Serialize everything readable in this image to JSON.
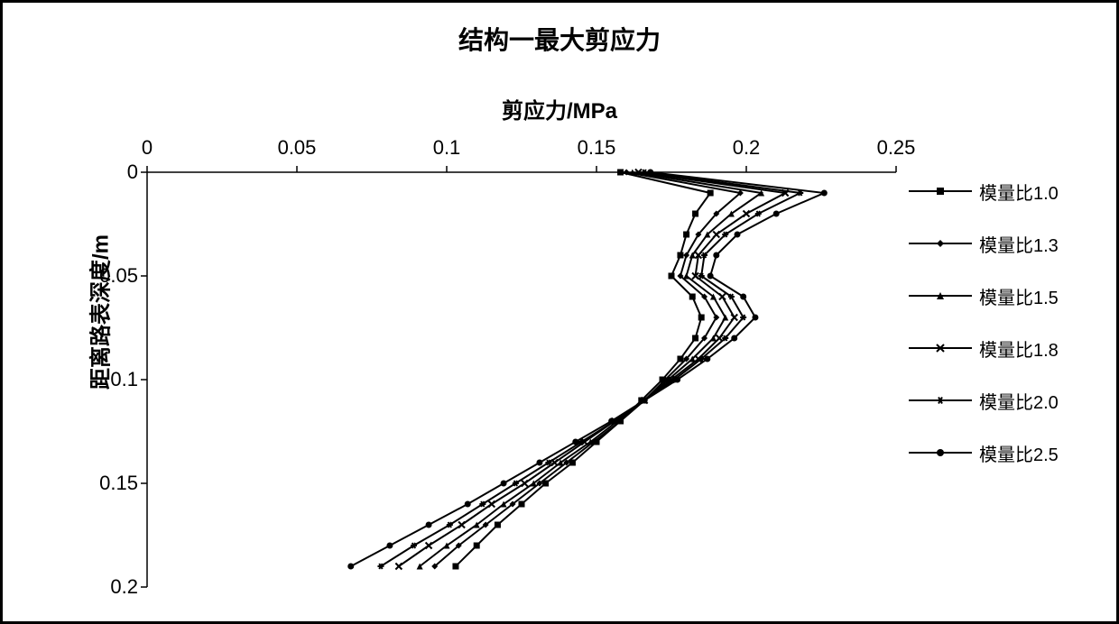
{
  "chart": {
    "type": "line",
    "title": "结构一最大剪应力",
    "title_fontsize": 28,
    "xlabel": "剪应力/MPa",
    "ylabel": "距离路表深度/m",
    "label_fontsize": 24,
    "xlim": [
      0,
      0.25
    ],
    "ylim": [
      0,
      0.2
    ],
    "x_axis_position": "top",
    "y_reversed": true,
    "xticks": [
      0,
      0.05,
      0.1,
      0.15,
      0.2,
      0.25
    ],
    "xtick_labels": [
      "0",
      "0.05",
      "0.1",
      "0.15",
      "0.2",
      "0.25"
    ],
    "yticks": [
      0,
      0.05,
      0.1,
      0.15,
      0.2
    ],
    "ytick_labels": [
      "0",
      "0.05",
      "0.1",
      "0.15",
      "0.2"
    ],
    "background_color": "#ffffff",
    "axis_color": "#000000",
    "tick_fontsize": 22,
    "line_width": 2,
    "marker_size": 7,
    "series": [
      {
        "name": "模量比1.0",
        "marker": "square",
        "color": "#000000",
        "data": [
          {
            "y": 0.0,
            "x": 0.158
          },
          {
            "y": 0.01,
            "x": 0.188
          },
          {
            "y": 0.02,
            "x": 0.183
          },
          {
            "y": 0.03,
            "x": 0.18
          },
          {
            "y": 0.04,
            "x": 0.178
          },
          {
            "y": 0.05,
            "x": 0.175
          },
          {
            "y": 0.06,
            "x": 0.182
          },
          {
            "y": 0.07,
            "x": 0.185
          },
          {
            "y": 0.08,
            "x": 0.183
          },
          {
            "y": 0.09,
            "x": 0.178
          },
          {
            "y": 0.1,
            "x": 0.172
          },
          {
            "y": 0.11,
            "x": 0.165
          },
          {
            "y": 0.12,
            "x": 0.158
          },
          {
            "y": 0.13,
            "x": 0.15
          },
          {
            "y": 0.14,
            "x": 0.142
          },
          {
            "y": 0.15,
            "x": 0.133
          },
          {
            "y": 0.16,
            "x": 0.125
          },
          {
            "y": 0.17,
            "x": 0.117
          },
          {
            "y": 0.18,
            "x": 0.11
          },
          {
            "y": 0.19,
            "x": 0.103
          }
        ]
      },
      {
        "name": "模量比1.3",
        "marker": "diamond",
        "color": "#000000",
        "data": [
          {
            "y": 0.0,
            "x": 0.16
          },
          {
            "y": 0.01,
            "x": 0.198
          },
          {
            "y": 0.02,
            "x": 0.19
          },
          {
            "y": 0.03,
            "x": 0.184
          },
          {
            "y": 0.04,
            "x": 0.18
          },
          {
            "y": 0.05,
            "x": 0.178
          },
          {
            "y": 0.06,
            "x": 0.186
          },
          {
            "y": 0.07,
            "x": 0.19
          },
          {
            "y": 0.08,
            "x": 0.186
          },
          {
            "y": 0.09,
            "x": 0.18
          },
          {
            "y": 0.1,
            "x": 0.173
          },
          {
            "y": 0.11,
            "x": 0.166
          },
          {
            "y": 0.12,
            "x": 0.158
          },
          {
            "y": 0.13,
            "x": 0.149
          },
          {
            "y": 0.14,
            "x": 0.14
          },
          {
            "y": 0.15,
            "x": 0.131
          },
          {
            "y": 0.16,
            "x": 0.122
          },
          {
            "y": 0.17,
            "x": 0.113
          },
          {
            "y": 0.18,
            "x": 0.104
          },
          {
            "y": 0.19,
            "x": 0.096
          }
        ]
      },
      {
        "name": "模量比1.5",
        "marker": "triangle",
        "color": "#000000",
        "data": [
          {
            "y": 0.0,
            "x": 0.162
          },
          {
            "y": 0.01,
            "x": 0.205
          },
          {
            "y": 0.02,
            "x": 0.195
          },
          {
            "y": 0.03,
            "x": 0.187
          },
          {
            "y": 0.04,
            "x": 0.182
          },
          {
            "y": 0.05,
            "x": 0.18
          },
          {
            "y": 0.06,
            "x": 0.189
          },
          {
            "y": 0.07,
            "x": 0.193
          },
          {
            "y": 0.08,
            "x": 0.189
          },
          {
            "y": 0.09,
            "x": 0.182
          },
          {
            "y": 0.1,
            "x": 0.174
          },
          {
            "y": 0.11,
            "x": 0.166
          },
          {
            "y": 0.12,
            "x": 0.157
          },
          {
            "y": 0.13,
            "x": 0.148
          },
          {
            "y": 0.14,
            "x": 0.138
          },
          {
            "y": 0.15,
            "x": 0.129
          },
          {
            "y": 0.16,
            "x": 0.119
          },
          {
            "y": 0.17,
            "x": 0.11
          },
          {
            "y": 0.18,
            "x": 0.1
          },
          {
            "y": 0.19,
            "x": 0.091
          }
        ]
      },
      {
        "name": "模量比1.8",
        "marker": "x",
        "color": "#000000",
        "data": [
          {
            "y": 0.0,
            "x": 0.164
          },
          {
            "y": 0.01,
            "x": 0.213
          },
          {
            "y": 0.02,
            "x": 0.2
          },
          {
            "y": 0.03,
            "x": 0.19
          },
          {
            "y": 0.04,
            "x": 0.184
          },
          {
            "y": 0.05,
            "x": 0.183
          },
          {
            "y": 0.06,
            "x": 0.192
          },
          {
            "y": 0.07,
            "x": 0.196
          },
          {
            "y": 0.08,
            "x": 0.191
          },
          {
            "y": 0.09,
            "x": 0.184
          },
          {
            "y": 0.1,
            "x": 0.175
          },
          {
            "y": 0.11,
            "x": 0.166
          },
          {
            "y": 0.12,
            "x": 0.156
          },
          {
            "y": 0.13,
            "x": 0.146
          },
          {
            "y": 0.14,
            "x": 0.136
          },
          {
            "y": 0.15,
            "x": 0.126
          },
          {
            "y": 0.16,
            "x": 0.115
          },
          {
            "y": 0.17,
            "x": 0.105
          },
          {
            "y": 0.18,
            "x": 0.094
          },
          {
            "y": 0.19,
            "x": 0.084
          }
        ]
      },
      {
        "name": "模量比2.0",
        "marker": "asterisk",
        "color": "#000000",
        "data": [
          {
            "y": 0.0,
            "x": 0.166
          },
          {
            "y": 0.01,
            "x": 0.218
          },
          {
            "y": 0.02,
            "x": 0.204
          },
          {
            "y": 0.03,
            "x": 0.193
          },
          {
            "y": 0.04,
            "x": 0.186
          },
          {
            "y": 0.05,
            "x": 0.185
          },
          {
            "y": 0.06,
            "x": 0.195
          },
          {
            "y": 0.07,
            "x": 0.199
          },
          {
            "y": 0.08,
            "x": 0.193
          },
          {
            "y": 0.09,
            "x": 0.185
          },
          {
            "y": 0.1,
            "x": 0.176
          },
          {
            "y": 0.11,
            "x": 0.166
          },
          {
            "y": 0.12,
            "x": 0.156
          },
          {
            "y": 0.13,
            "x": 0.145
          },
          {
            "y": 0.14,
            "x": 0.134
          },
          {
            "y": 0.15,
            "x": 0.123
          },
          {
            "y": 0.16,
            "x": 0.112
          },
          {
            "y": 0.17,
            "x": 0.101
          },
          {
            "y": 0.18,
            "x": 0.089
          },
          {
            "y": 0.19,
            "x": 0.078
          }
        ]
      },
      {
        "name": "模量比2.5",
        "marker": "circle",
        "color": "#000000",
        "data": [
          {
            "y": 0.0,
            "x": 0.168
          },
          {
            "y": 0.01,
            "x": 0.226
          },
          {
            "y": 0.02,
            "x": 0.21
          },
          {
            "y": 0.03,
            "x": 0.197
          },
          {
            "y": 0.04,
            "x": 0.19
          },
          {
            "y": 0.05,
            "x": 0.188
          },
          {
            "y": 0.06,
            "x": 0.199
          },
          {
            "y": 0.07,
            "x": 0.203
          },
          {
            "y": 0.08,
            "x": 0.196
          },
          {
            "y": 0.09,
            "x": 0.187
          },
          {
            "y": 0.1,
            "x": 0.177
          },
          {
            "y": 0.11,
            "x": 0.166
          },
          {
            "y": 0.12,
            "x": 0.155
          },
          {
            "y": 0.13,
            "x": 0.143
          },
          {
            "y": 0.14,
            "x": 0.131
          },
          {
            "y": 0.15,
            "x": 0.119
          },
          {
            "y": 0.16,
            "x": 0.107
          },
          {
            "y": 0.17,
            "x": 0.094
          },
          {
            "y": 0.18,
            "x": 0.081
          },
          {
            "y": 0.19,
            "x": 0.068
          }
        ]
      }
    ]
  }
}
